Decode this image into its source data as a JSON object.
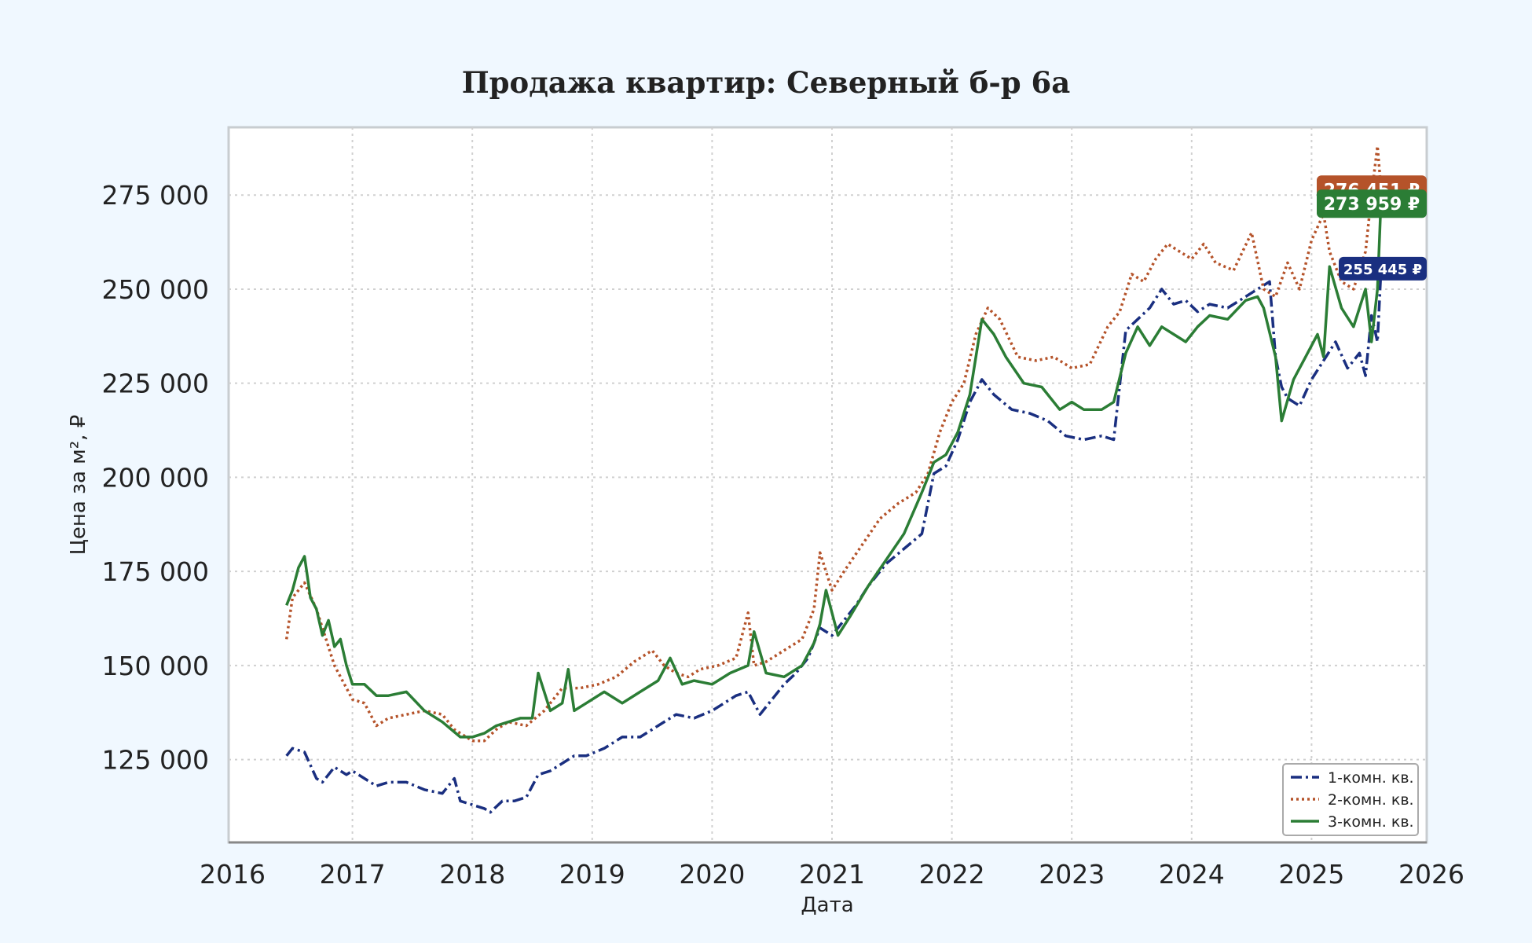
{
  "chart_data": {
    "type": "line",
    "title": "Продажа квартир: Северный б-р 6а",
    "xlabel": "Дата",
    "ylabel": "Цена за м², ₽",
    "xlim": [
      2016,
      2026
    ],
    "ylim": [
      103000,
      293000
    ],
    "x_ticks": [
      "2016",
      "2017",
      "2018",
      "2019",
      "2020",
      "2021",
      "2022",
      "2023",
      "2024",
      "2025",
      "2026"
    ],
    "y_ticks": [
      "125 000",
      "150 000",
      "175 000",
      "200 000",
      "225 000",
      "250 000",
      "275 000"
    ],
    "y_tick_values": [
      125000,
      150000,
      175000,
      200000,
      225000,
      250000,
      275000
    ],
    "grid": true,
    "legend_position": "bottom-right",
    "series": [
      {
        "name": "1-комн. кв.",
        "color": "#1a2f80",
        "style": "dashdot",
        "end_label": "255 445 ₽",
        "x": [
          2016.45,
          2016.5,
          2016.6,
          2016.7,
          2016.75,
          2016.85,
          2016.95,
          2017.0,
          2017.1,
          2017.2,
          2017.3,
          2017.45,
          2017.6,
          2017.75,
          2017.85,
          2017.9,
          2018.0,
          2018.1,
          2018.15,
          2018.25,
          2018.35,
          2018.45,
          2018.55,
          2018.65,
          2018.75,
          2018.85,
          2018.95,
          2019.1,
          2019.25,
          2019.4,
          2019.55,
          2019.7,
          2019.85,
          2020.0,
          2020.1,
          2020.2,
          2020.3,
          2020.4,
          2020.5,
          2020.6,
          2020.7,
          2020.8,
          2020.9,
          2021.0,
          2021.1,
          2021.2,
          2021.3,
          2021.45,
          2021.6,
          2021.75,
          2021.85,
          2021.95,
          2022.05,
          2022.15,
          2022.25,
          2022.35,
          2022.5,
          2022.65,
          2022.8,
          2022.95,
          2023.1,
          2023.25,
          2023.35,
          2023.45,
          2023.55,
          2023.65,
          2023.75,
          2023.85,
          2023.95,
          2024.05,
          2024.15,
          2024.3,
          2024.45,
          2024.55,
          2024.65,
          2024.7,
          2024.75,
          2024.8,
          2024.9,
          2025.0,
          2025.1,
          2025.2,
          2025.3,
          2025.4,
          2025.45,
          2025.5,
          2025.55,
          2025.58
        ],
        "y": [
          126000,
          128000,
          127000,
          120000,
          119000,
          123000,
          121000,
          122000,
          120000,
          118000,
          119000,
          119000,
          117000,
          116000,
          120000,
          114000,
          113000,
          112000,
          111000,
          114000,
          114000,
          115000,
          121000,
          122000,
          124000,
          126000,
          126000,
          128000,
          131000,
          131000,
          134000,
          137000,
          136000,
          138000,
          140000,
          142000,
          143000,
          137000,
          141000,
          145000,
          148000,
          152000,
          160000,
          158000,
          162000,
          166000,
          171000,
          177000,
          181000,
          185000,
          201000,
          203000,
          210000,
          220000,
          226000,
          222000,
          218000,
          217000,
          215000,
          211000,
          210000,
          211000,
          210000,
          239000,
          242000,
          245000,
          250000,
          246000,
          247000,
          244000,
          246000,
          245000,
          248000,
          250000,
          252000,
          232000,
          224000,
          221000,
          219000,
          226000,
          231000,
          236000,
          229000,
          233000,
          227000,
          243000,
          236000,
          255445
        ]
      },
      {
        "name": "2-комн. кв.",
        "color": "#b5532a",
        "style": "dotted",
        "end_label": "276 451 ₽",
        "x": [
          2016.45,
          2016.5,
          2016.6,
          2016.7,
          2016.75,
          2016.85,
          2016.95,
          2017.0,
          2017.1,
          2017.2,
          2017.3,
          2017.45,
          2017.6,
          2017.75,
          2017.85,
          2018.0,
          2018.1,
          2018.2,
          2018.3,
          2018.45,
          2018.6,
          2018.75,
          2018.9,
          2019.05,
          2019.2,
          2019.35,
          2019.5,
          2019.6,
          2019.7,
          2019.8,
          2019.9,
          2020.05,
          2020.2,
          2020.3,
          2020.35,
          2020.45,
          2020.6,
          2020.75,
          2020.85,
          2020.9,
          2021.0,
          2021.1,
          2021.25,
          2021.4,
          2021.55,
          2021.7,
          2021.8,
          2021.9,
          2022.0,
          2022.1,
          2022.2,
          2022.3,
          2022.4,
          2022.55,
          2022.7,
          2022.85,
          2023.0,
          2023.15,
          2023.3,
          2023.4,
          2023.5,
          2023.6,
          2023.7,
          2023.8,
          2023.9,
          2024.0,
          2024.1,
          2024.2,
          2024.35,
          2024.5,
          2024.6,
          2024.7,
          2024.8,
          2024.9,
          2025.0,
          2025.1,
          2025.15,
          2025.25,
          2025.35,
          2025.45,
          2025.5,
          2025.55,
          2025.58
        ],
        "y": [
          157000,
          168000,
          172000,
          165000,
          160000,
          150000,
          144000,
          141000,
          140000,
          134000,
          136000,
          137000,
          138000,
          137000,
          133000,
          130000,
          130000,
          133000,
          135000,
          134000,
          138000,
          144000,
          144000,
          145000,
          147000,
          151000,
          154000,
          150000,
          148000,
          147000,
          149000,
          150000,
          152000,
          164000,
          150000,
          151000,
          154000,
          157000,
          165000,
          180000,
          170000,
          175000,
          182000,
          189000,
          193000,
          196000,
          201000,
          212000,
          220000,
          225000,
          238000,
          245000,
          242000,
          232000,
          231000,
          232000,
          229000,
          230000,
          240000,
          244000,
          254000,
          252000,
          258000,
          262000,
          260000,
          258000,
          262000,
          257000,
          255000,
          265000,
          250000,
          248000,
          257000,
          250000,
          263000,
          270000,
          260000,
          252000,
          250000,
          260000,
          275000,
          288000,
          276451
        ]
      },
      {
        "name": "3-комн. кв.",
        "color": "#2b7d35",
        "style": "solid",
        "end_label": "273 959 ₽",
        "x": [
          2016.45,
          2016.5,
          2016.55,
          2016.6,
          2016.65,
          2016.7,
          2016.75,
          2016.8,
          2016.85,
          2016.9,
          2016.95,
          2017.0,
          2017.1,
          2017.2,
          2017.3,
          2017.45,
          2017.6,
          2017.75,
          2017.9,
          2018.0,
          2018.1,
          2018.2,
          2018.3,
          2018.4,
          2018.5,
          2018.55,
          2018.65,
          2018.75,
          2018.8,
          2018.85,
          2018.95,
          2019.1,
          2019.25,
          2019.4,
          2019.55,
          2019.65,
          2019.75,
          2019.85,
          2020.0,
          2020.15,
          2020.3,
          2020.35,
          2020.45,
          2020.6,
          2020.75,
          2020.85,
          2020.9,
          2020.95,
          2021.05,
          2021.15,
          2021.3,
          2021.45,
          2021.6,
          2021.75,
          2021.85,
          2021.95,
          2022.05,
          2022.15,
          2022.25,
          2022.35,
          2022.45,
          2022.6,
          2022.75,
          2022.9,
          2023.0,
          2023.1,
          2023.25,
          2023.35,
          2023.45,
          2023.55,
          2023.65,
          2023.75,
          2023.85,
          2023.95,
          2024.05,
          2024.15,
          2024.3,
          2024.45,
          2024.55,
          2024.6,
          2024.7,
          2024.75,
          2024.85,
          2024.95,
          2025.05,
          2025.1,
          2025.15,
          2025.25,
          2025.35,
          2025.45,
          2025.5,
          2025.55,
          2025.58
        ],
        "y": [
          166000,
          170000,
          176000,
          179000,
          168000,
          165000,
          158000,
          162000,
          155000,
          157000,
          150000,
          145000,
          145000,
          142000,
          142000,
          143000,
          138000,
          135000,
          131000,
          131000,
          132000,
          134000,
          135000,
          136000,
          136000,
          148000,
          138000,
          140000,
          149000,
          138000,
          140000,
          143000,
          140000,
          143000,
          146000,
          152000,
          145000,
          146000,
          145000,
          148000,
          150000,
          159000,
          148000,
          147000,
          150000,
          156000,
          161000,
          170000,
          158000,
          163000,
          171000,
          178000,
          185000,
          196000,
          204000,
          206000,
          212000,
          222000,
          242000,
          238000,
          232000,
          225000,
          224000,
          218000,
          220000,
          218000,
          218000,
          220000,
          233000,
          240000,
          235000,
          240000,
          238000,
          236000,
          240000,
          243000,
          242000,
          247000,
          248000,
          245000,
          232000,
          215000,
          226000,
          232000,
          238000,
          232000,
          256000,
          245000,
          240000,
          250000,
          236000,
          250000,
          273959
        ]
      }
    ]
  }
}
